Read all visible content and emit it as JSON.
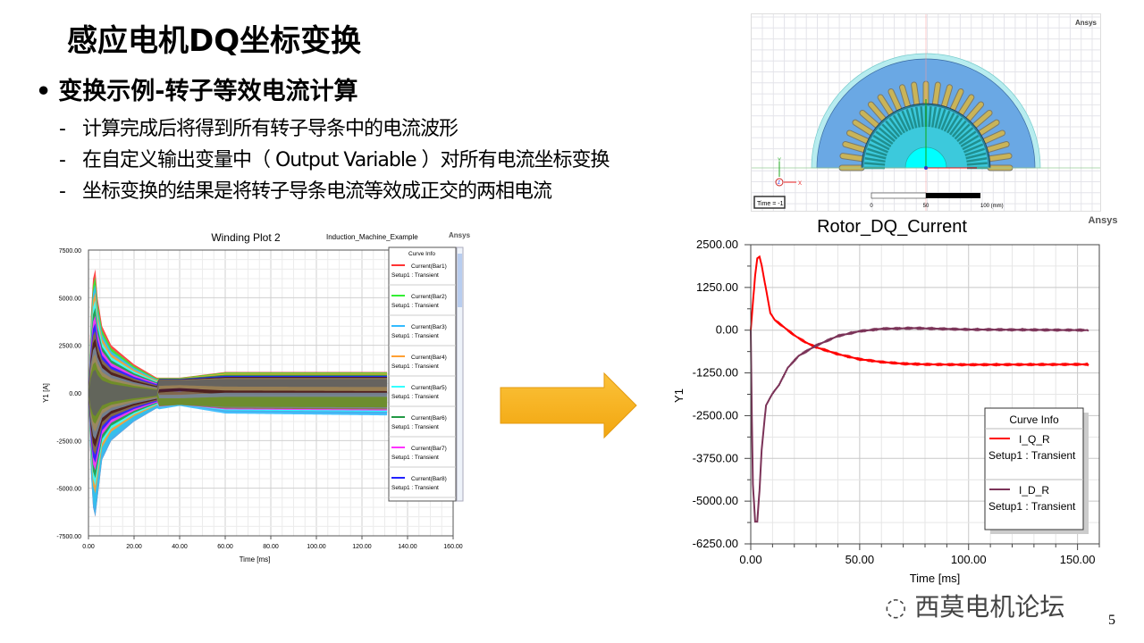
{
  "slide": {
    "title": "感应电机DQ坐标变换",
    "bullet": "变换示例-转子等效电流计算",
    "bullet_marker": "•",
    "sub_items": [
      "计算完成后将得到所有转子导条中的电流波形",
      "在自定义输出变量中（ Output Variable ）对所有电流坐标变换",
      "坐标变换的结果是将转子导条电流等效成正交的两相电流"
    ],
    "sub_marker": "-",
    "page_number": "5",
    "watermark": "西莫电机论坛"
  },
  "motor_view": {
    "brand": "Ansys",
    "time_label": "Time = -1",
    "scale_labels": [
      "0",
      "50",
      "100 (mm)"
    ],
    "axis_labels": {
      "x": "X",
      "y": "Y",
      "z": "Z"
    },
    "colors": {
      "housing": "#b7ecef",
      "stator": "#6aa8e4",
      "rotor": "#3cc9dc",
      "shaft": "#00ffff",
      "coil": "#c9b458",
      "bars": "#1f8f8f"
    }
  },
  "arrow": {
    "icon": "arrow-right-icon",
    "color": "#f9b21d"
  },
  "chart_data": [
    {
      "type": "area",
      "title": "Winding Plot 2",
      "subtitle": "Induction_Machine_Example",
      "brand": "Ansys",
      "xlabel": "Time [ms]",
      "ylabel": "Y1 [A]",
      "xlim": [
        0,
        160
      ],
      "ylim": [
        -7500,
        7500
      ],
      "xticks": [
        "0.00",
        "20.00",
        "40.00",
        "60.00",
        "80.00",
        "100.00",
        "120.00",
        "140.00",
        "160.00"
      ],
      "yticks": [
        "7500.00",
        "5000.00",
        "2500.00",
        "0.00",
        "-2500.00",
        "-5000.00",
        "-7500.00"
      ],
      "grid": true,
      "legend_title": "Curve Info",
      "legend_placement": "top-right",
      "envelope_x": [
        0,
        1,
        2,
        3,
        4,
        6,
        10,
        20,
        30,
        40,
        60,
        131
      ],
      "envelope_upper": [
        0,
        4000,
        6000,
        6500,
        5000,
        3500,
        2500,
        1500,
        800,
        800,
        1100,
        1100
      ],
      "envelope_lower": [
        0,
        -4000,
        -6000,
        -6500,
        -5500,
        -3500,
        -2500,
        -1500,
        -800,
        -600,
        -1000,
        -1100
      ],
      "series": [
        {
          "name": "Current(Bar1)",
          "setup": "Setup1 : Transient",
          "color": "#ff3333"
        },
        {
          "name": "Current(Bar2)",
          "setup": "Setup1 : Transient",
          "color": "#33ee33"
        },
        {
          "name": "Current(Bar3)",
          "setup": "Setup1 : Transient",
          "color": "#33bbff"
        },
        {
          "name": "Current(Bar4)",
          "setup": "Setup1 : Transient",
          "color": "#ffa033"
        },
        {
          "name": "Current(Bar5)",
          "setup": "Setup1 : Transient",
          "color": "#33ffff"
        },
        {
          "name": "Current(Bar6)",
          "setup": "Setup1 : Transient",
          "color": "#229944"
        },
        {
          "name": "Current(Bar7)",
          "setup": "Setup1 : Transient",
          "color": "#ff33ff"
        },
        {
          "name": "Current(Bar8)",
          "setup": "Setup1 : Transient",
          "color": "#2222ff"
        }
      ]
    },
    {
      "type": "line",
      "title": "Rotor_DQ_Current",
      "brand": "Ansys",
      "xlabel": "Time [ms]",
      "ylabel": "Y1",
      "xlim": [
        0,
        160
      ],
      "ylim": [
        -6250,
        2500
      ],
      "xticks": [
        "0.00",
        "50.00",
        "100.00",
        "150.00"
      ],
      "yticks": [
        "2500.00",
        "1250.00",
        "0.00",
        "-1250.00",
        "-2500.00",
        "-3750.00",
        "-5000.00",
        "-6250.00"
      ],
      "grid": true,
      "legend_title": "Curve Info",
      "legend_placement": "bottom-right",
      "series": [
        {
          "name": "I_Q_R",
          "setup": "Setup1 : Transient",
          "color": "#ff0000",
          "x": [
            0,
            1,
            2,
            3,
            4,
            5,
            7,
            9,
            11,
            15,
            20,
            25,
            30,
            40,
            50,
            60,
            70,
            80,
            100,
            155
          ],
          "y": [
            0,
            800,
            1600,
            2100,
            2150,
            1900,
            1200,
            500,
            300,
            100,
            -150,
            -350,
            -500,
            -700,
            -850,
            -930,
            -980,
            -1000,
            -1010,
            -1000
          ]
        },
        {
          "name": "I_D_R",
          "setup": "Setup1 : Transient",
          "color": "#7b3358",
          "x": [
            0,
            0.5,
            1,
            2,
            3,
            4,
            5,
            7,
            10,
            13,
            17,
            22,
            30,
            40,
            50,
            60,
            75,
            100,
            155
          ],
          "y": [
            0,
            -2500,
            -4500,
            -5600,
            -5600,
            -4700,
            -3500,
            -2200,
            -1850,
            -1600,
            -1100,
            -750,
            -450,
            -170,
            -30,
            40,
            60,
            20,
            0
          ]
        }
      ]
    }
  ]
}
